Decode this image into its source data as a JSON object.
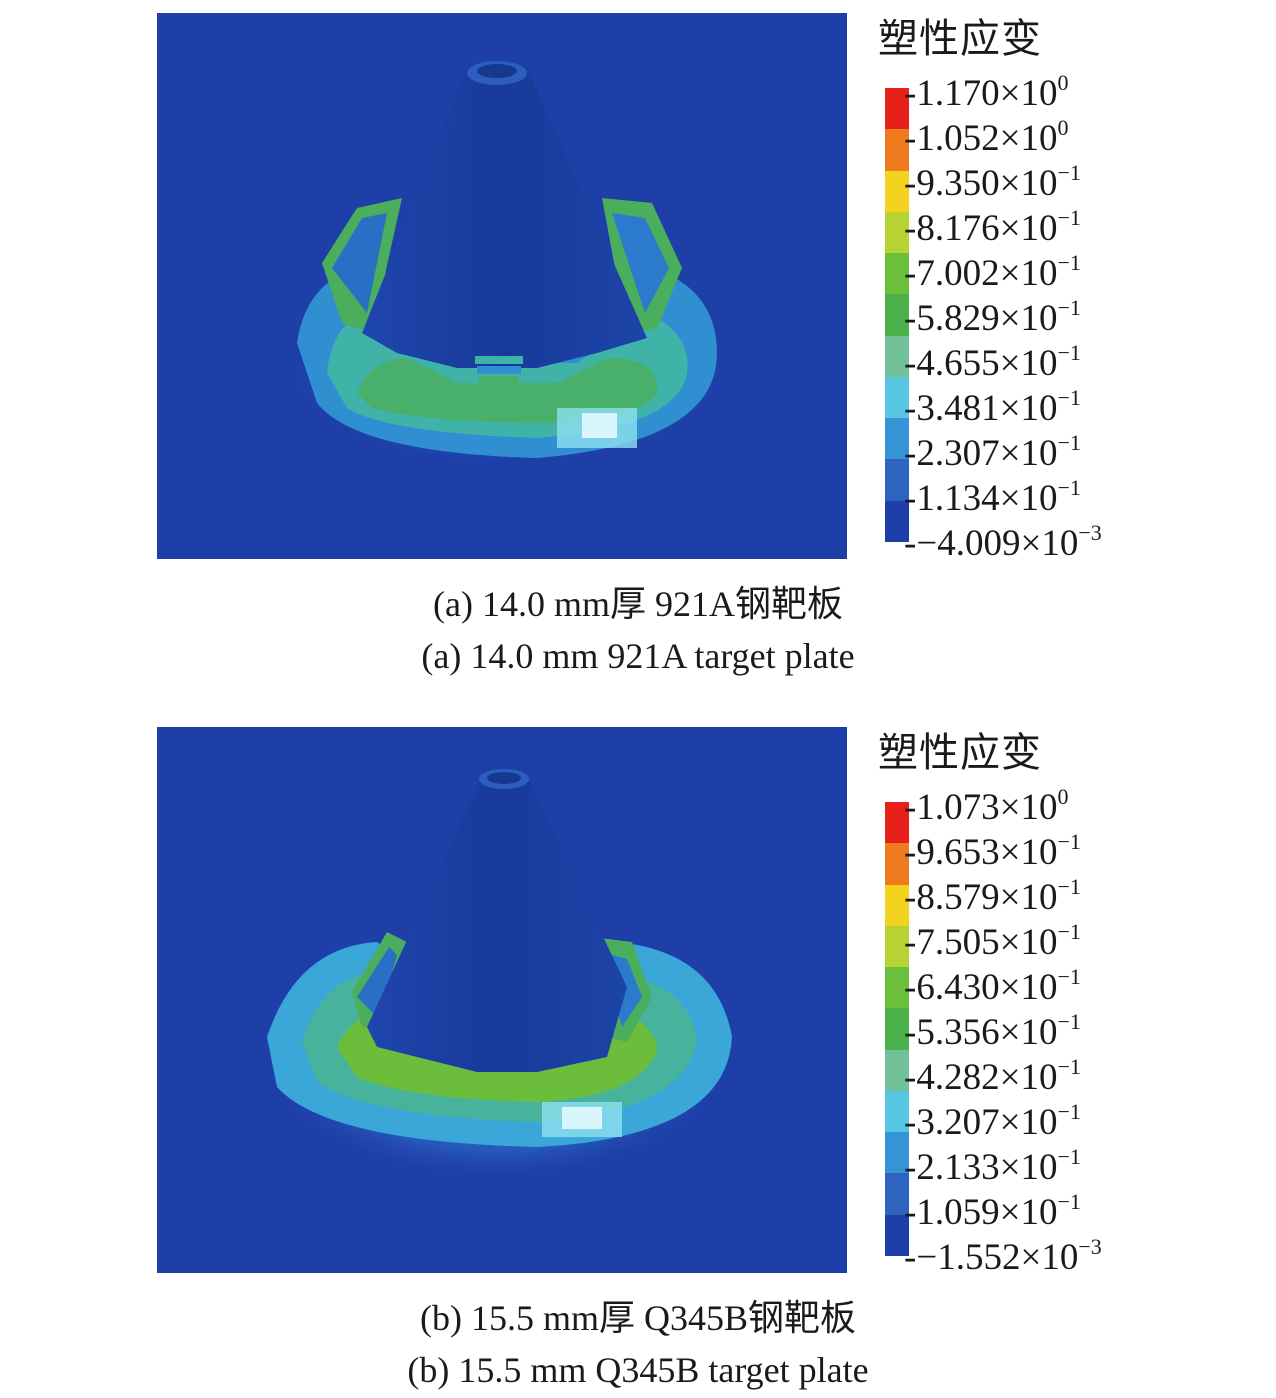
{
  "panels": [
    {
      "legend_title": "塑性应变",
      "colors": [
        "#e8201a",
        "#f07b1e",
        "#f3d21f",
        "#b6d233",
        "#6bbf3a",
        "#4ab049",
        "#72c09a",
        "#57c6e2",
        "#3593d6",
        "#2f63c0",
        "#1e3ea8"
      ],
      "ticks": [
        {
          "mantissa": "1.170",
          "exponent": "0"
        },
        {
          "mantissa": "1.052",
          "exponent": "0"
        },
        {
          "mantissa": "9.350",
          "exponent": "−1"
        },
        {
          "mantissa": "8.176",
          "exponent": "−1"
        },
        {
          "mantissa": "7.002",
          "exponent": "−1"
        },
        {
          "mantissa": "5.829",
          "exponent": "−1"
        },
        {
          "mantissa": "4.655",
          "exponent": "−1"
        },
        {
          "mantissa": "3.481",
          "exponent": "−1"
        },
        {
          "mantissa": "2.307",
          "exponent": "−1"
        },
        {
          "mantissa": "1.134",
          "exponent": "−1"
        },
        {
          "mantissa": "−4.009",
          "exponent": "−3"
        }
      ],
      "caption_cn": "(a) 14.0 mm厚 921A钢靶板",
      "caption_en": "(a) 14.0 mm 921A target plate"
    },
    {
      "legend_title": "塑性应变",
      "colors": [
        "#e8201a",
        "#f07b1e",
        "#f3d21f",
        "#b6d233",
        "#6bbf3a",
        "#4ab049",
        "#72c09a",
        "#57c6e2",
        "#3593d6",
        "#2f63c0",
        "#1e3ea8"
      ],
      "ticks": [
        {
          "mantissa": "1.073",
          "exponent": "0"
        },
        {
          "mantissa": "9.653",
          "exponent": "−1"
        },
        {
          "mantissa": "8.579",
          "exponent": "−1"
        },
        {
          "mantissa": "7.505",
          "exponent": "−1"
        },
        {
          "mantissa": "6.430",
          "exponent": "−1"
        },
        {
          "mantissa": "5.356",
          "exponent": "−1"
        },
        {
          "mantissa": "4.282",
          "exponent": "−1"
        },
        {
          "mantissa": "3.207",
          "exponent": "−1"
        },
        {
          "mantissa": "2.133",
          "exponent": "−1"
        },
        {
          "mantissa": "1.059",
          "exponent": "−1"
        },
        {
          "mantissa": "−1.552",
          "exponent": "−3"
        }
      ],
      "caption_cn": "(b) 15.5 mm厚 Q345B钢靶板",
      "caption_en": "(b) 15.5 mm Q345B target plate"
    }
  ],
  "times_sign": "×10"
}
